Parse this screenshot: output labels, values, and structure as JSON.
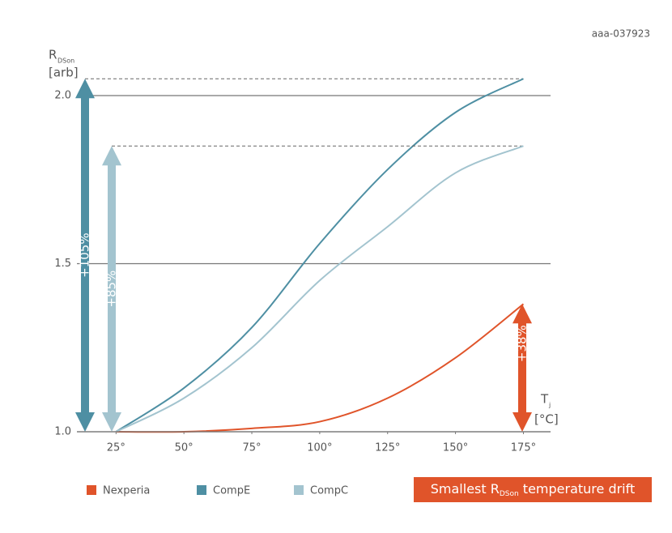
{
  "chart_data": {
    "type": "line",
    "code": "aaa-037923",
    "y_label": {
      "main": "R",
      "sub": "DSon",
      "unit": "[arb]"
    },
    "x_label": {
      "main": "T",
      "sub": "j",
      "unit": "[°C]"
    },
    "x": [
      25,
      50,
      75,
      100,
      125,
      150,
      175
    ],
    "series": [
      {
        "name": "Nexperia",
        "color": "#e0542a",
        "values": [
          1.0,
          1.0,
          1.01,
          1.03,
          1.1,
          1.22,
          1.38
        ],
        "change_label": "+38%"
      },
      {
        "name": "CompE",
        "color": "#4e8fa3",
        "values": [
          1.0,
          1.13,
          1.31,
          1.56,
          1.78,
          1.95,
          2.05
        ],
        "change_label": "+105%"
      },
      {
        "name": "CompC",
        "color": "#a3c4cf",
        "values": [
          1.0,
          1.1,
          1.25,
          1.45,
          1.61,
          1.77,
          1.85
        ],
        "change_label": "+85%"
      }
    ],
    "xlim": [
      10,
      185
    ],
    "ylim": [
      1,
      2.1
    ],
    "xticks": [
      {
        "value": 25,
        "label": "25°"
      },
      {
        "value": 50,
        "label": "50°"
      },
      {
        "value": 75,
        "label": "75°"
      },
      {
        "value": 100,
        "label": "100°"
      },
      {
        "value": 125,
        "label": "125°"
      },
      {
        "value": 150,
        "label": "150°"
      },
      {
        "value": 175,
        "label": "175°"
      }
    ],
    "yticks": [
      {
        "value": 1,
        "label": "1.0"
      },
      1.5,
      {
        "value": 2,
        "label": "2.0"
      }
    ],
    "grid": true,
    "banner": {
      "text": "Smallest R",
      "sub": "DSon",
      "rest": " temperature drift",
      "color": "#e0542a"
    }
  }
}
